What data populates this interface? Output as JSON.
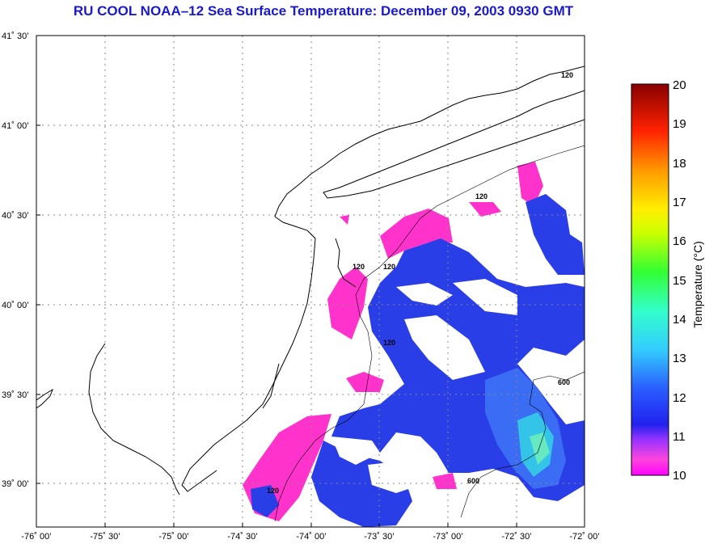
{
  "title": "RU COOL  NOAA–12  Sea Surface Temperature:  December 09, 2003 0930 GMT",
  "map": {
    "lat_labels": [
      "41˚ 30’",
      "41˚ 00’",
      "40˚ 30’",
      "40˚ 00’",
      "39˚ 30’",
      "39˚ 00’"
    ],
    "lon_labels": [
      "-76˚ 00’",
      "-75˚ 30’",
      "-75˚ 00’",
      "-74˚ 30’",
      "-74˚ 00’",
      "-73˚ 30’",
      "-73˚ 00’",
      "-72˚ 30’",
      "-72˚ 00’"
    ],
    "contour_labels": [
      "120",
      "120",
      "120",
      "120",
      "120",
      "120",
      "600",
      "600"
    ]
  },
  "colorbar": {
    "label": "Temperature (°C)",
    "ticks": [
      "20",
      "19",
      "18",
      "17",
      "16",
      "15",
      "14",
      "13",
      "12",
      "11",
      "10"
    ],
    "min": 10,
    "max": 20
  },
  "colors": {
    "title": "#1a1acc",
    "cold": "#ff33cc",
    "cool": "#2a3ee8",
    "mid": "#33ccff",
    "warm": "#ffff00",
    "hot": "#ff0000"
  }
}
